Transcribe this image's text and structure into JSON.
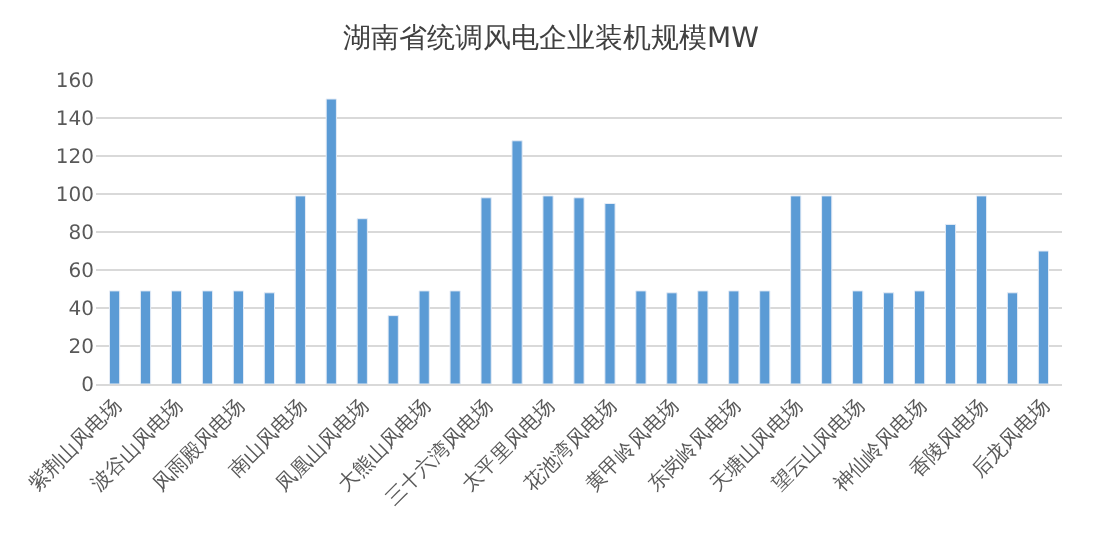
{
  "chart_data": {
    "type": "bar",
    "title": "湖南省统调风电企业装机规模MW",
    "categories": [
      "紫荆山风电场",
      null,
      "波谷山风电场",
      null,
      "风雨殿风电场",
      null,
      "南山风电场",
      null,
      "凤凰山风电场",
      null,
      "大熊山风电场",
      null,
      "三十六湾风电场",
      null,
      "太平里风电场",
      null,
      "花池湾风电场",
      null,
      "黄甲岭风电场",
      null,
      "东岗岭风电场",
      null,
      "天塘山风电场",
      null,
      "望云山风电场",
      null,
      "神仙岭风电场",
      null,
      "香陵风电场",
      null,
      "后龙风电场"
    ],
    "values": [
      49,
      49,
      49,
      49,
      49,
      48,
      99,
      150,
      87,
      36,
      49,
      49,
      98,
      128,
      99,
      98,
      95,
      49,
      48,
      49,
      49,
      49,
      99,
      99,
      49,
      48,
      49,
      84,
      99,
      48,
      70
    ],
    "color": "#5b9bd5",
    "ylim": [
      0,
      160
    ],
    "yticks": [
      0,
      20,
      40,
      60,
      80,
      100,
      120,
      140,
      160
    ],
    "grid": "y"
  }
}
